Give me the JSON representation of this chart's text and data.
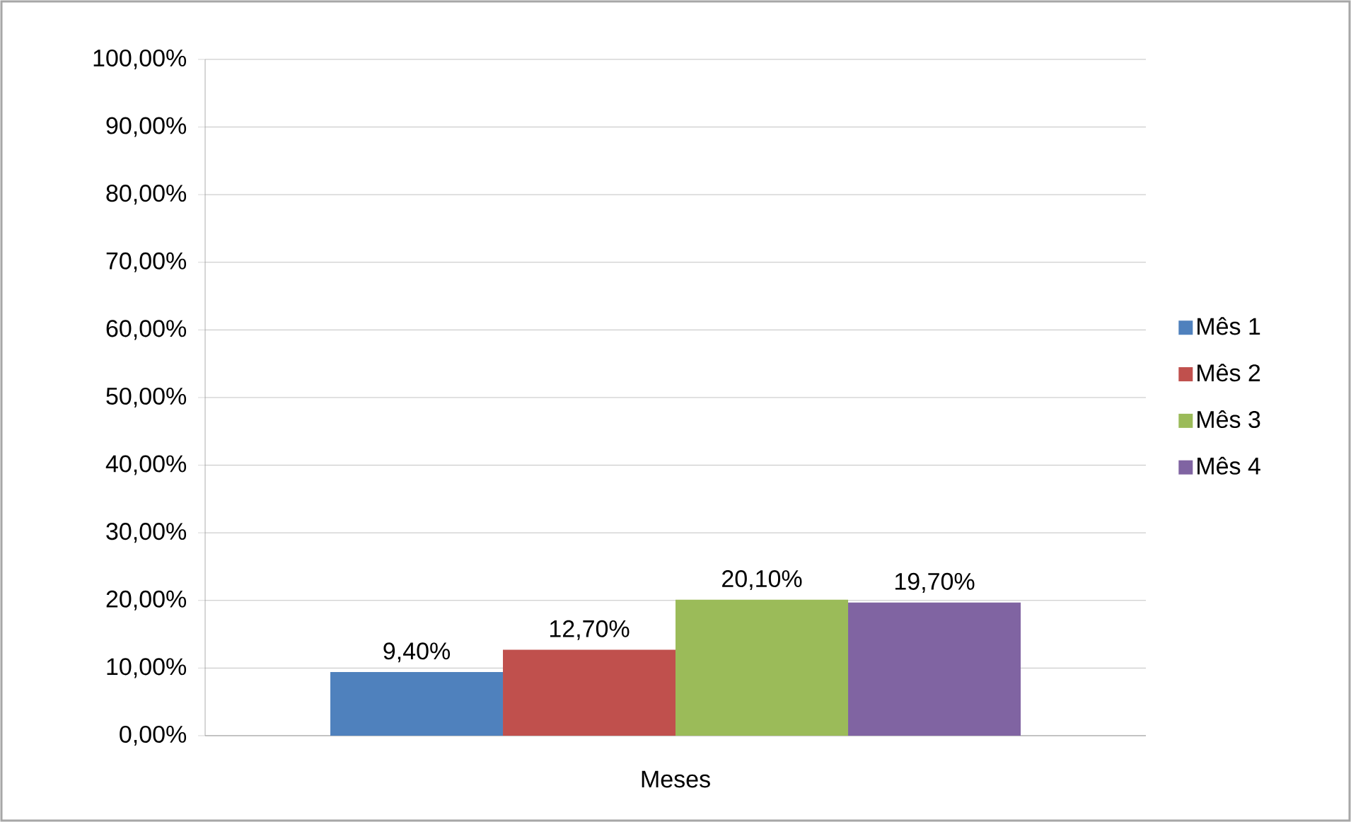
{
  "chart_data": {
    "type": "bar",
    "categories": [
      "Meses"
    ],
    "series": [
      {
        "name": "Mês 1",
        "color": "#4f81bd",
        "values": [
          9.4
        ],
        "value_labels": [
          "9,40%"
        ]
      },
      {
        "name": "Mês 2",
        "color": "#c0504d",
        "values": [
          12.7
        ],
        "value_labels": [
          "12,70%"
        ]
      },
      {
        "name": "Mês 3",
        "color": "#9bbb59",
        "values": [
          20.1
        ],
        "value_labels": [
          "20,10%"
        ]
      },
      {
        "name": "Mês 4",
        "color": "#8064a2",
        "values": [
          19.7
        ],
        "value_labels": [
          "19,70%"
        ]
      }
    ],
    "ylim": [
      0,
      100
    ],
    "yticks": [
      {
        "value": 0,
        "label": "0,00%"
      },
      {
        "value": 10,
        "label": "10,00%"
      },
      {
        "value": 20,
        "label": "20,00%"
      },
      {
        "value": 30,
        "label": "30,00%"
      },
      {
        "value": 40,
        "label": "40,00%"
      },
      {
        "value": 50,
        "label": "50,00%"
      },
      {
        "value": 60,
        "label": "60,00%"
      },
      {
        "value": 70,
        "label": "70,00%"
      },
      {
        "value": 80,
        "label": "80,00%"
      },
      {
        "value": 90,
        "label": "90,00%"
      },
      {
        "value": 100,
        "label": "100,00%"
      }
    ],
    "grid": "y",
    "legend": "right"
  }
}
